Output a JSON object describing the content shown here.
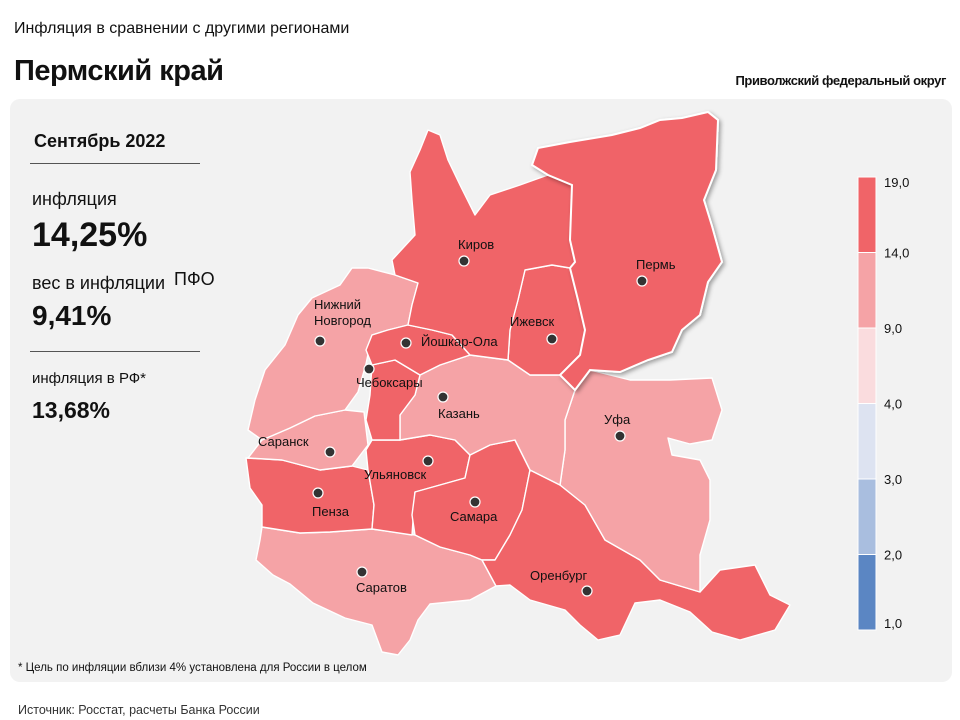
{
  "header": {
    "subtitle": "Инфляция в сравнении с другими регионами",
    "title": "Пермский край",
    "district": "Приволжский федеральный округ"
  },
  "stats": {
    "period": "Сентябрь 2022",
    "inflation_label": "инфляция",
    "inflation_value": "14,25%",
    "weight_label": "вес в инфляции",
    "weight_suffix": "ПФО",
    "weight_value": "9,41%",
    "rf_label": "инфляция в РФ*",
    "rf_value": "13,68%"
  },
  "footnote": "* Цель по инфляции вблизи 4% установлена для России в целом",
  "source": "Источник: Росстат, расчеты Банка России",
  "legend": {
    "ticks": [
      "19,0",
      "14,0",
      "9,0",
      "4,0",
      "3,0",
      "2,0",
      "1,0"
    ],
    "colors": [
      "#f06468",
      "#f5a3a6",
      "#fadcde",
      "#dde3f1",
      "#a9bedf",
      "#5b86c3"
    ]
  },
  "cities": [
    {
      "name": "Киров",
      "region": "Кировская область",
      "color": "#f06468"
    },
    {
      "name": "Пермь",
      "region": "Пермский край",
      "color": "#f06468"
    },
    {
      "name": "Нижний Новгород",
      "line1": "Нижний",
      "line2": "Новгород",
      "region": "Нижегородская область",
      "color": "#f5a3a6"
    },
    {
      "name": "Ижевск",
      "region": "Удмуртская Республика",
      "color": "#f06468"
    },
    {
      "name": "Йошкар-Ола",
      "region": "Республика Марий Эл",
      "color": "#f06468"
    },
    {
      "name": "Чебоксары",
      "region": "Чувашская Республика",
      "color": "#f06468"
    },
    {
      "name": "Казань",
      "region": "Республика Татарстан",
      "color": "#f5a3a6"
    },
    {
      "name": "Уфа",
      "region": "Республика Башкортостан",
      "color": "#f5a3a6"
    },
    {
      "name": "Саранск",
      "region": "Республика Мордовия",
      "color": "#f5a3a6"
    },
    {
      "name": "Ульяновск",
      "region": "Ульяновская область",
      "color": "#f06468"
    },
    {
      "name": "Пенза",
      "region": "Пензенская область",
      "color": "#f06468"
    },
    {
      "name": "Самара",
      "region": "Самарская область",
      "color": "#f06468"
    },
    {
      "name": "Оренбург",
      "region": "Оренбургская область",
      "color": "#f06468"
    },
    {
      "name": "Саратов",
      "region": "Саратовская область",
      "color": "#f5a3a6"
    }
  ]
}
